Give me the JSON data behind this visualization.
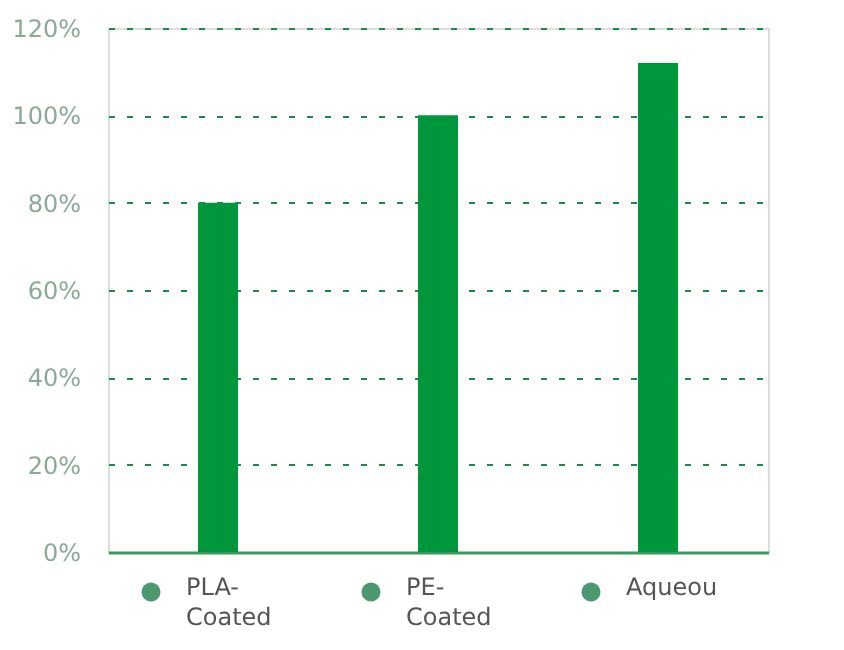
{
  "chart_data": {
    "type": "bar",
    "categories": [
      "PLA-Coated",
      "PE-Coated",
      "Aqueou"
    ],
    "values": [
      80,
      100,
      112
    ],
    "color": "#00963c",
    "ylim": [
      0,
      120
    ],
    "yticks": [
      {
        "value": 0,
        "label": "0%"
      },
      {
        "value": 20,
        "label": "20%"
      },
      {
        "value": 40,
        "label": "40%"
      },
      {
        "value": 60,
        "label": "60%"
      },
      {
        "value": 80,
        "label": "80%"
      },
      {
        "value": 100,
        "label": "100%"
      },
      {
        "value": 120,
        "label": "120%"
      }
    ],
    "grid": "y",
    "line_style": "dashed"
  }
}
